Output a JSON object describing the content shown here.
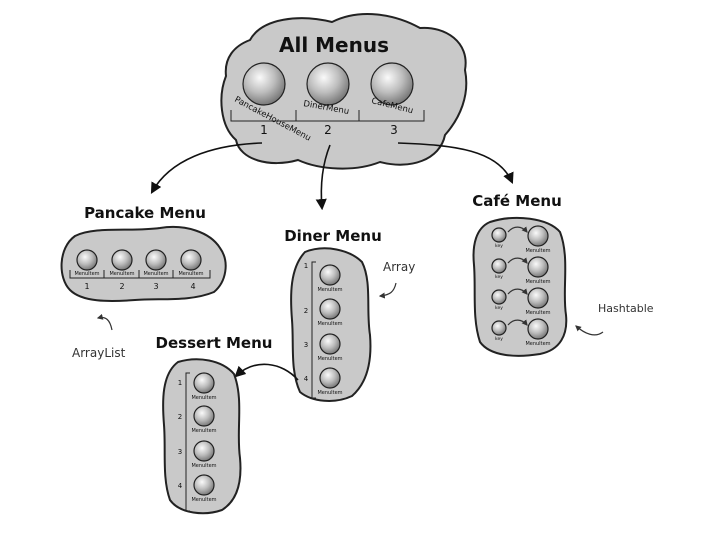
{
  "title": "All Menus",
  "root": {
    "items": [
      "PancakeHouseMenu",
      "DinerMenu",
      "CafeMenu"
    ],
    "indices": [
      "1",
      "2",
      "3"
    ]
  },
  "pancake": {
    "title": "Pancake Menu",
    "item_label": "MenuItem",
    "indices": [
      "1",
      "2",
      "3",
      "4"
    ],
    "note": "ArrayList"
  },
  "diner": {
    "title": "Diner Menu",
    "item_label": "MenuItem",
    "indices": [
      "1",
      "2",
      "3",
      "4"
    ],
    "note": "Array"
  },
  "dessert": {
    "title": "Dessert Menu",
    "item_label": "MenuItem",
    "indices": [
      "1",
      "2",
      "3",
      "4"
    ]
  },
  "cafe": {
    "title": "Café Menu",
    "key_label": "key",
    "item_label": "MenuItem",
    "note": "Hashtable"
  }
}
